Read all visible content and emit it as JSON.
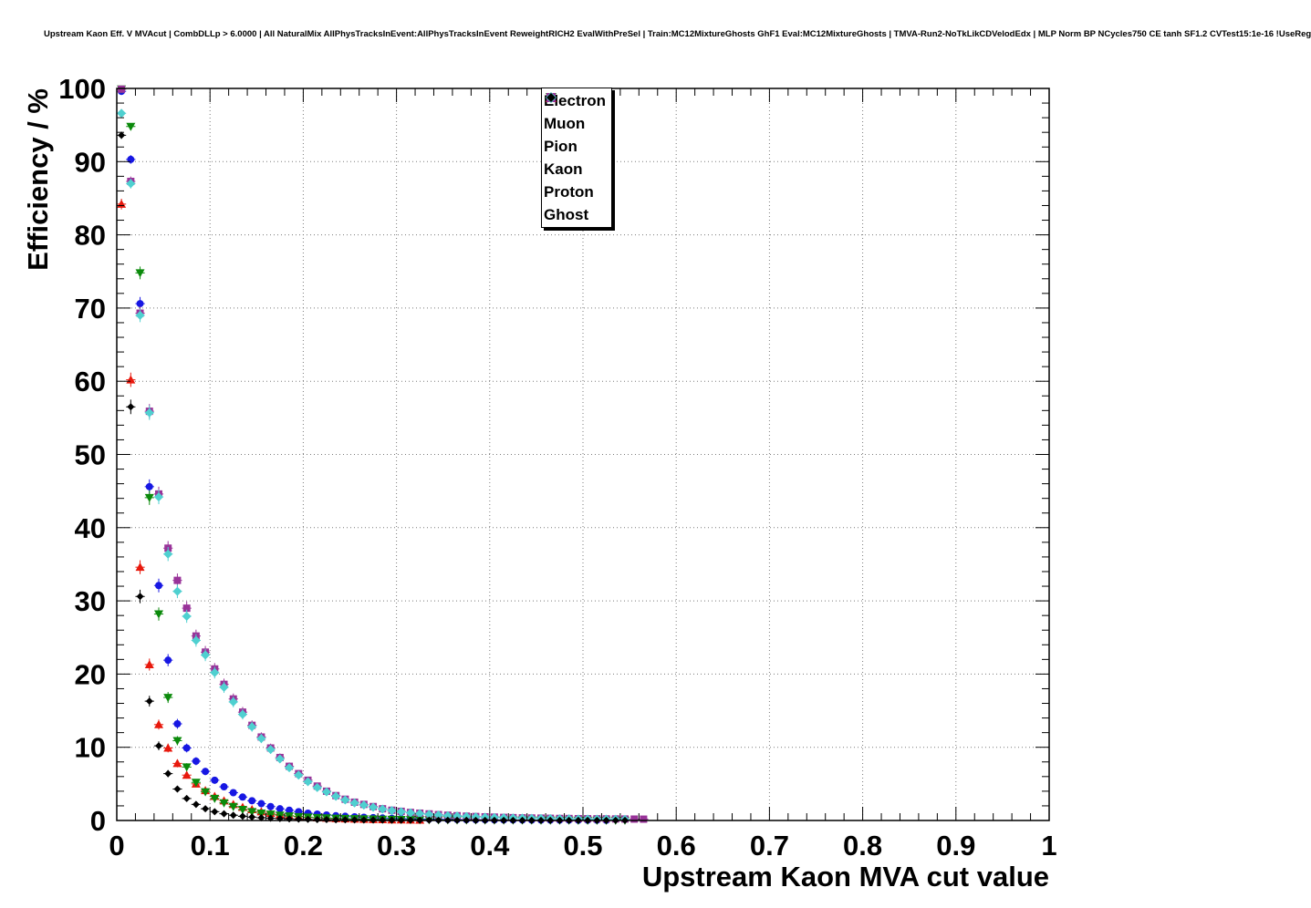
{
  "header": {
    "title": "Upstream Kaon Eff. V MVAcut | CombDLLp > 6.0000 | All NaturalMix AllPhysTracksInEvent:AllPhysTracksInEvent ReweightRICH2 EvalWithPreSel | Train:MC12MixtureGhosts GhF1 Eval:MC12MixtureGhosts | TMVA-Run2-NoTkLikCDVelodEdx | MLP Norm BP NCycles750 CE tanh SF1.2 CVTest15:1e-16 !UseReg"
  },
  "chart_data": {
    "type": "scatter",
    "title": "Upstream Kaon Eff. V MVAcut",
    "xlabel": "Upstream Kaon MVA cut value",
    "ylabel": "Efficiency / %",
    "xlim": [
      0,
      1
    ],
    "ylim": [
      0,
      100
    ],
    "x_major_step": 0.1,
    "x_minor_step": 0.02,
    "y_major_step": 10,
    "y_minor_step": 2,
    "grid": true,
    "grid_style": "dotted",
    "legend_position": "top-center",
    "x_start": 0.005,
    "x_step": 0.01,
    "series": [
      {
        "name": "Electron",
        "color": "#e8180c",
        "marker": "triangle-up",
        "marker_size": 4,
        "values": [
          84.2,
          60.2,
          34.6,
          21.3,
          13.1,
          9.9,
          7.8,
          6.2,
          5.0,
          4.1,
          3.3,
          2.7,
          2.2,
          1.8,
          1.5,
          1.2,
          1.0,
          0.8,
          0.65,
          0.55,
          0.45,
          0.38,
          0.32,
          0.27,
          0.23,
          0.2,
          0.17,
          0.14,
          0.12,
          0.1,
          0.09,
          0.08,
          0.07
        ]
      },
      {
        "name": "Muon",
        "color": "#1717e3",
        "marker": "circle",
        "marker_size": 4,
        "values": [
          99.6,
          90.3,
          70.6,
          45.6,
          32.1,
          21.9,
          13.2,
          9.9,
          8.1,
          6.7,
          5.5,
          4.6,
          3.8,
          3.2,
          2.7,
          2.3,
          1.9,
          1.6,
          1.4,
          1.2,
          1.0,
          0.87,
          0.75,
          0.65,
          0.57,
          0.5,
          0.44,
          0.39,
          0.34,
          0.3,
          0.27,
          0.24,
          0.21,
          0.19,
          0.17,
          0.15,
          0.14,
          0.12,
          0.11,
          0.1,
          0.09,
          0.08,
          0.08,
          0.07,
          0.06,
          0.06,
          0.05,
          0.05,
          0.05,
          0.04,
          0.04,
          0.04,
          0.03
        ]
      },
      {
        "name": "Pion",
        "color": "#0b8a0b",
        "marker": "triangle-down",
        "marker_size": 4,
        "values": [
          99.9,
          94.8,
          74.8,
          44.1,
          28.2,
          16.8,
          10.9,
          7.3,
          5.2,
          3.9,
          3.0,
          2.4,
          1.9,
          1.5,
          1.2,
          1.0,
          0.85,
          0.72,
          0.61,
          0.52,
          0.45,
          0.39,
          0.34,
          0.3,
          0.26,
          0.23,
          0.2,
          0.18,
          0.16,
          0.14,
          0.13,
          0.11,
          0.1,
          0.09,
          0.08,
          0.08,
          0.07,
          0.06,
          0.06,
          0.05,
          0.05,
          0.05,
          0.04,
          0.04,
          0.04,
          0.03,
          0.03,
          0.03,
          0.03,
          0.02,
          0.02,
          0.02,
          0.02,
          0.02,
          0.02
        ]
      },
      {
        "name": "Kaon",
        "color": "#993399",
        "marker": "square",
        "marker_size": 4,
        "values": [
          99.9,
          87.3,
          69.3,
          55.9,
          44.6,
          37.2,
          32.8,
          29.0,
          25.2,
          23.0,
          20.7,
          18.6,
          16.6,
          14.8,
          13.0,
          11.4,
          9.9,
          8.6,
          7.4,
          6.4,
          5.5,
          4.7,
          4.0,
          3.4,
          2.9,
          2.5,
          2.2,
          1.9,
          1.6,
          1.4,
          1.25,
          1.1,
          1.0,
          0.9,
          0.8,
          0.72,
          0.65,
          0.59,
          0.54,
          0.5,
          0.46,
          0.42,
          0.39,
          0.36,
          0.34,
          0.32,
          0.3,
          0.28,
          0.27,
          0.25,
          0.24,
          0.23,
          0.22,
          0.21,
          0.2,
          0.19,
          0.18
        ]
      },
      {
        "name": "Proton",
        "color": "#4fd0d0",
        "marker": "diamond",
        "marker_size": 4,
        "values": [
          96.6,
          87.0,
          69.0,
          55.7,
          44.2,
          36.4,
          31.3,
          27.9,
          24.6,
          22.6,
          20.2,
          18.2,
          16.2,
          14.5,
          12.8,
          11.2,
          9.7,
          8.4,
          7.2,
          6.2,
          5.3,
          4.5,
          3.9,
          3.3,
          2.8,
          2.4,
          2.1,
          1.8,
          1.55,
          1.35,
          1.2,
          1.05,
          0.93,
          0.83,
          0.74,
          0.66,
          0.6,
          0.54,
          0.49,
          0.45,
          0.41,
          0.38,
          0.35,
          0.32,
          0.3,
          0.28,
          0.26,
          0.24,
          0.23,
          0.21,
          0.2,
          0.19,
          0.18,
          0.17,
          0.16
        ]
      },
      {
        "name": "Ghost",
        "color": "#000000",
        "marker": "diamond",
        "marker_size": 3,
        "values": [
          93.6,
          56.5,
          30.6,
          16.3,
          10.2,
          6.4,
          4.3,
          3.0,
          2.2,
          1.6,
          1.2,
          0.92,
          0.72,
          0.57,
          0.46,
          0.37,
          0.31,
          0.26,
          0.22,
          0.18,
          0.16,
          0.13,
          0.12,
          0.1,
          0.09,
          0.08,
          0.07,
          0.06,
          0.06,
          0.05,
          0.05,
          0.04,
          0.04,
          0.04,
          0.03,
          0.03,
          0.03,
          0.03,
          0.02,
          0.02,
          0.02,
          0.02,
          0.02,
          0.02,
          0.02,
          0.01,
          0.01,
          0.01,
          0.01,
          0.01,
          0.01,
          0.01,
          0.01,
          0.01,
          0.01
        ]
      }
    ]
  }
}
